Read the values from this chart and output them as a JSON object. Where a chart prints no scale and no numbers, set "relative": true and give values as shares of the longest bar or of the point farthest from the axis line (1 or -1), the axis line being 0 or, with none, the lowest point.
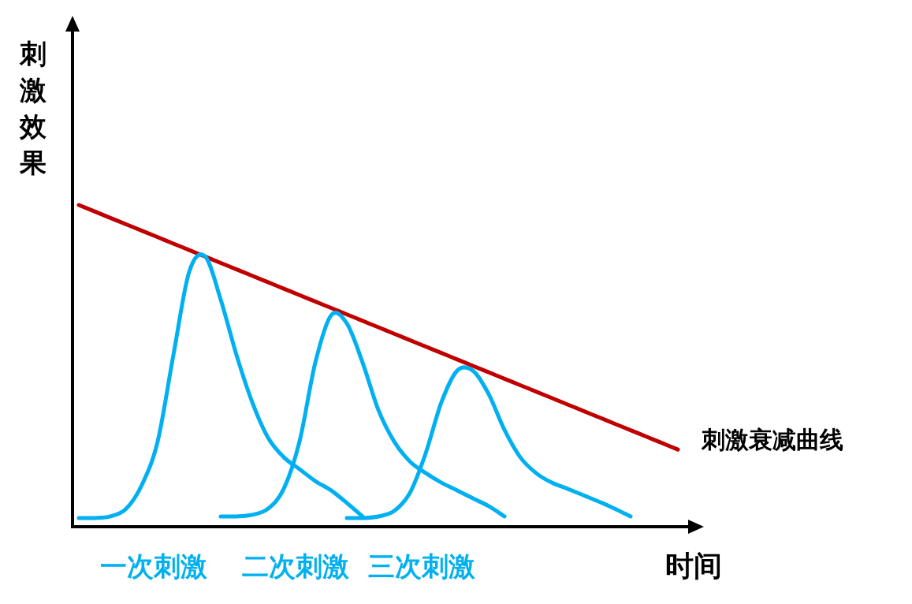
{
  "chart_data": {
    "type": "line",
    "relative": true,
    "xlabel": "时间",
    "ylabel": "刺激效果",
    "categories": [
      null,
      null,
      null,
      null,
      null,
      null,
      null,
      null,
      null,
      null,
      null,
      null,
      null,
      null,
      null,
      null,
      null,
      null,
      null,
      null,
      null,
      null,
      null,
      null,
      null,
      null,
      null,
      null,
      null,
      null,
      null,
      null,
      null,
      null,
      null,
      null,
      null,
      null,
      null,
      null
    ],
    "series": [
      {
        "name": "刺激衰减曲线",
        "color": "#c00000",
        "values": [
          1,
          0.98,
          0.96,
          0.94,
          0.92,
          0.9,
          0.88,
          0.86,
          0.84,
          0.82,
          0.8,
          0.78,
          0.76,
          0.74,
          0.72,
          0.7,
          0.68,
          0.66,
          0.64,
          0.62,
          0.6,
          0.58,
          0.56,
          0.54,
          0.52,
          0.5,
          0.48,
          0.46,
          0.44,
          0.42,
          0.4,
          0.38,
          0.36,
          0.34,
          0.32,
          0.3,
          0.28,
          0.26,
          0.24,
          null
        ]
      },
      {
        "name": "一次刺激",
        "color": "#00b0f0",
        "values": [
          0.027,
          0.027,
          0.032,
          0.056,
          0.13,
          0.265,
          0.534,
          0.792,
          0.841,
          0.706,
          0.534,
          0.387,
          0.277,
          0.216,
          0.179,
          0.142,
          0.113,
          0.074,
          0.032,
          null,
          null,
          null,
          null,
          null,
          null,
          null,
          null,
          null,
          null,
          null,
          null,
          null,
          null,
          null,
          null,
          null,
          null,
          null,
          null,
          null
        ]
      },
      {
        "name": "二次刺激",
        "color": "#00b0f0",
        "values": [
          null,
          null,
          null,
          null,
          null,
          null,
          null,
          null,
          null,
          0.032,
          0.032,
          0.037,
          0.056,
          0.118,
          0.265,
          0.51,
          0.657,
          0.632,
          0.51,
          0.363,
          0.265,
          0.203,
          0.167,
          0.137,
          0.113,
          0.088,
          0.064,
          0.032,
          null,
          null,
          null,
          null,
          null,
          null,
          null,
          null,
          null,
          null,
          null,
          null
        ]
      },
      {
        "name": "三次刺激",
        "color": "#00b0f0",
        "values": [
          null,
          null,
          null,
          null,
          null,
          null,
          null,
          null,
          null,
          null,
          null,
          null,
          null,
          null,
          null,
          null,
          null,
          0.027,
          0.027,
          0.032,
          0.049,
          0.105,
          0.228,
          0.387,
          0.485,
          0.485,
          0.412,
          0.301,
          0.216,
          0.167,
          0.137,
          0.118,
          0.098,
          0.078,
          0.056,
          0.032,
          null,
          null,
          null,
          null
        ]
      }
    ]
  }
}
